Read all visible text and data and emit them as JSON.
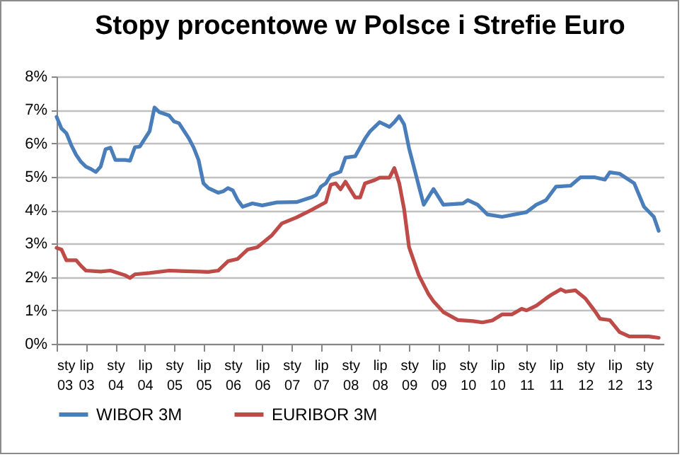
{
  "chart_data": {
    "type": "line",
    "title": "Stopy procentowe w Polsce i Strefie Euro",
    "xlim": [
      "2003-01",
      "2013-05"
    ],
    "xticks": [
      {
        "value": "2003-01",
        "label": "sty 03"
      },
      {
        "value": "2003-07",
        "label": "lip 03"
      },
      {
        "value": "2004-01",
        "label": "sty 04"
      },
      {
        "value": "2004-07",
        "label": "lip 04"
      },
      {
        "value": "2005-01",
        "label": "sty 05"
      },
      {
        "value": "2005-07",
        "label": "lip 05"
      },
      {
        "value": "2006-01",
        "label": "sty 06"
      },
      {
        "value": "2006-07",
        "label": "lip 06"
      },
      {
        "value": "2007-01",
        "label": "sty 07"
      },
      {
        "value": "2007-07",
        "label": "lip 07"
      },
      {
        "value": "2008-01",
        "label": "sty 08"
      },
      {
        "value": "2008-07",
        "label": "lip 08"
      },
      {
        "value": "2009-01",
        "label": "sty 09"
      },
      {
        "value": "2009-07",
        "label": "lip 09"
      },
      {
        "value": "2010-01",
        "label": "sty 10"
      },
      {
        "value": "2010-07",
        "label": "lip 10"
      },
      {
        "value": "2011-01",
        "label": "sty 11"
      },
      {
        "value": "2011-07",
        "label": "lip 11"
      },
      {
        "value": "2012-01",
        "label": "sty 12"
      },
      {
        "value": "2012-07",
        "label": "lip 12"
      },
      {
        "value": "2013-01",
        "label": "sty 13"
      }
    ],
    "ylim": [
      0,
      8
    ],
    "yticks": [
      {
        "value": 0,
        "label": "0%"
      },
      {
        "value": 1,
        "label": "1%"
      },
      {
        "value": 2,
        "label": "2%"
      },
      {
        "value": 3,
        "label": "3%"
      },
      {
        "value": 4,
        "label": "4%"
      },
      {
        "value": 5,
        "label": "5%"
      },
      {
        "value": 6,
        "label": "6%"
      },
      {
        "value": 7,
        "label": "7%"
      },
      {
        "value": 8,
        "label": "8%"
      }
    ],
    "grid": "y",
    "legend": "bottom",
    "line_style": "solid",
    "marker": "none",
    "series": [
      {
        "name": "WIBOR 3M",
        "color": "#4a7ebb",
        "x": [
          "2003-01",
          "2003-02",
          "2003-03",
          "2003-04",
          "2003-05",
          "2003-06",
          "2003-07",
          "2003-08",
          "2003-09",
          "2003-10",
          "2003-11",
          "2003-12",
          "2004-01",
          "2004-03",
          "2004-04",
          "2004-05",
          "2004-06",
          "2004-08",
          "2004-09",
          "2004-10",
          "2004-12",
          "2005-01",
          "2005-02",
          "2005-04",
          "2005-05",
          "2005-06",
          "2005-07",
          "2005-08",
          "2005-10",
          "2005-11",
          "2005-12",
          "2006-01",
          "2006-02",
          "2006-03",
          "2006-05",
          "2006-07",
          "2006-10",
          "2007-02",
          "2007-05",
          "2007-06",
          "2007-07",
          "2007-08",
          "2007-09",
          "2007-11",
          "2007-12",
          "2008-02",
          "2008-04",
          "2008-05",
          "2008-07",
          "2008-09",
          "2008-10",
          "2008-11",
          "2008-12",
          "2009-01",
          "2009-03",
          "2009-04",
          "2009-06",
          "2009-08",
          "2009-12",
          "2010-01",
          "2010-03",
          "2010-05",
          "2010-08",
          "2011-01",
          "2011-03",
          "2011-05",
          "2011-07",
          "2011-10",
          "2011-12",
          "2012-03",
          "2012-05",
          "2012-06",
          "2012-08",
          "2012-11",
          "2013-01",
          "2013-03",
          "2013-04"
        ],
        "values": [
          6.79,
          6.44,
          6.3,
          5.94,
          5.65,
          5.44,
          5.3,
          5.23,
          5.14,
          5.3,
          5.82,
          5.87,
          5.5,
          5.5,
          5.48,
          5.88,
          5.9,
          6.36,
          7.07,
          6.93,
          6.83,
          6.65,
          6.6,
          6.15,
          5.87,
          5.5,
          4.8,
          4.66,
          4.52,
          4.56,
          4.66,
          4.59,
          4.3,
          4.1,
          4.2,
          4.14,
          4.23,
          4.24,
          4.38,
          4.45,
          4.7,
          4.8,
          5.04,
          5.15,
          5.57,
          5.61,
          6.14,
          6.35,
          6.63,
          6.49,
          6.63,
          6.81,
          6.56,
          5.85,
          4.72,
          4.16,
          4.63,
          4.16,
          4.2,
          4.3,
          4.16,
          3.87,
          3.8,
          3.94,
          4.16,
          4.3,
          4.7,
          4.73,
          4.98,
          4.98,
          4.91,
          5.13,
          5.09,
          4.8,
          4.1,
          3.8,
          3.38
        ]
      },
      {
        "name": "EURIBOR 3M",
        "color": "#be4b48",
        "x": [
          "2003-01",
          "2003-02",
          "2003-03",
          "2003-05",
          "2003-06",
          "2003-07",
          "2003-10",
          "2003-12",
          "2004-03",
          "2004-04",
          "2004-05",
          "2004-08",
          "2004-12",
          "2005-06",
          "2005-08",
          "2005-10",
          "2005-12",
          "2006-02",
          "2006-04",
          "2006-06",
          "2006-09",
          "2006-11",
          "2007-02",
          "2007-05",
          "2007-08",
          "2007-09",
          "2007-10",
          "2007-11",
          "2007-12",
          "2008-02",
          "2008-03",
          "2008-04",
          "2008-06",
          "2008-07",
          "2008-09",
          "2008-10",
          "2008-11",
          "2008-12",
          "2009-01",
          "2009-03",
          "2009-05",
          "2009-06",
          "2009-08",
          "2009-11",
          "2010-02",
          "2010-04",
          "2010-06",
          "2010-08",
          "2010-10",
          "2010-12",
          "2011-01",
          "2011-03",
          "2011-05",
          "2011-06",
          "2011-08",
          "2011-09",
          "2011-11",
          "2012-01",
          "2012-03",
          "2012-04",
          "2012-06",
          "2012-08",
          "2012-10",
          "2013-02",
          "2013-04"
        ],
        "values": [
          2.87,
          2.82,
          2.5,
          2.5,
          2.33,
          2.19,
          2.16,
          2.19,
          2.05,
          1.97,
          2.08,
          2.12,
          2.19,
          2.16,
          2.15,
          2.19,
          2.47,
          2.54,
          2.82,
          2.89,
          3.25,
          3.6,
          3.78,
          4.0,
          4.24,
          4.76,
          4.8,
          4.62,
          4.85,
          4.38,
          4.38,
          4.8,
          4.9,
          4.97,
          4.97,
          5.26,
          4.8,
          4.02,
          2.89,
          2.05,
          1.48,
          1.27,
          0.95,
          0.71,
          0.68,
          0.64,
          0.7,
          0.88,
          0.88,
          1.05,
          1.0,
          1.14,
          1.36,
          1.46,
          1.63,
          1.56,
          1.6,
          1.36,
          0.97,
          0.75,
          0.71,
          0.35,
          0.22,
          0.22,
          0.18
        ]
      }
    ]
  }
}
